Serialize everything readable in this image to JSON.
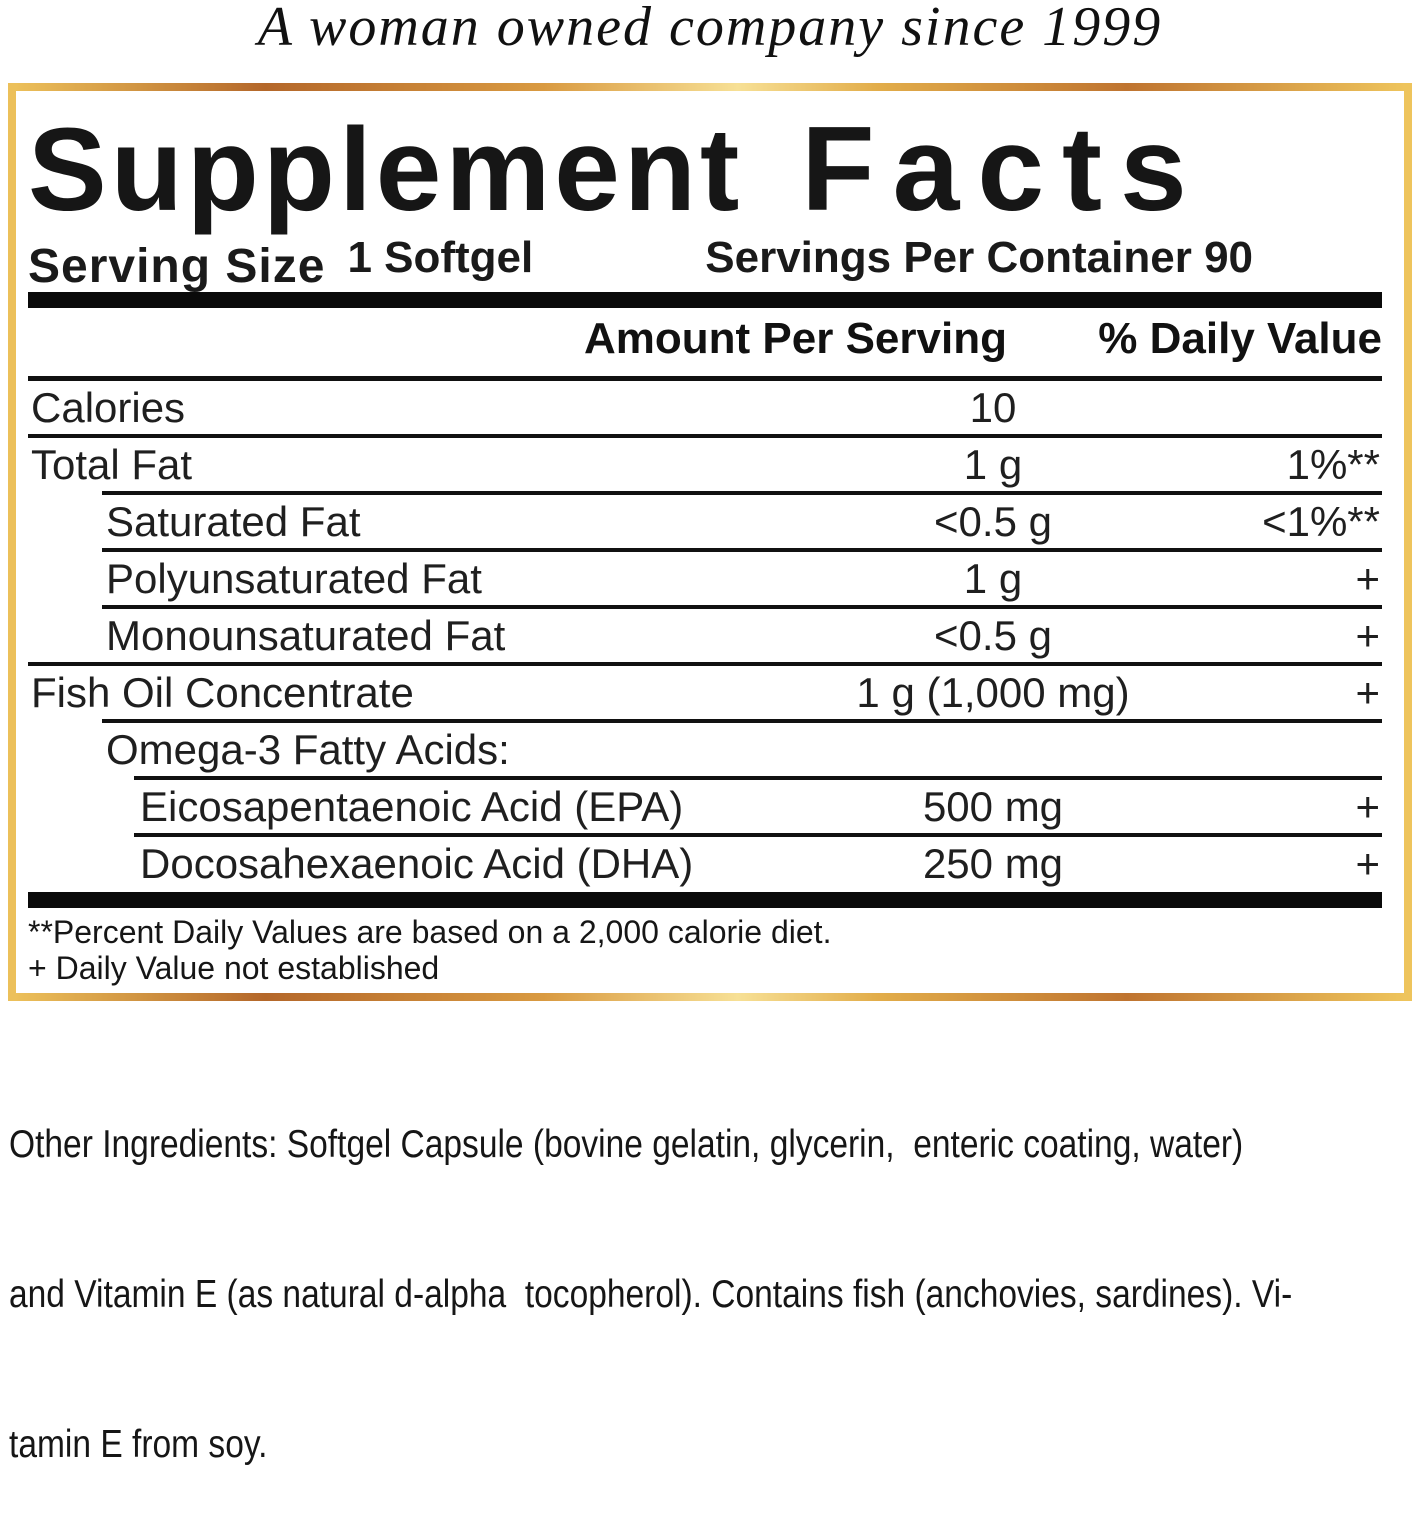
{
  "tagline": "A woman owned company since 1999",
  "panel": {
    "title": {
      "word1": "Supplement",
      "word2": "Facts"
    },
    "serving": {
      "label": "Serving Size",
      "value": "1 Softgel",
      "per_container": "Servings Per Container 90"
    },
    "columns": {
      "amount": "Amount Per Serving",
      "daily_value": "% Daily Value"
    },
    "rows": [
      {
        "label": "Calories",
        "amount": "10",
        "dv": ""
      },
      {
        "label": "Total Fat",
        "amount": "1 g",
        "dv": "1%**"
      },
      {
        "label": "Saturated Fat",
        "amount": "<0.5 g",
        "dv": "<1%**"
      },
      {
        "label": "Polyunsaturated Fat",
        "amount": "1 g",
        "dv": "+"
      },
      {
        "label": "Monounsaturated Fat",
        "amount": "<0.5 g",
        "dv": "+"
      },
      {
        "label": "Fish Oil Concentrate",
        "amount": "1 g (1,000 mg)",
        "dv": "+"
      },
      {
        "label": "Omega-3 Fatty Acids:",
        "amount": "",
        "dv": ""
      },
      {
        "label": "Eicosapentaenoic Acid (EPA)",
        "amount": "500 mg",
        "dv": "+"
      },
      {
        "label": "Docosahexaenoic Acid (DHA)",
        "amount": "250 mg",
        "dv": "+"
      }
    ],
    "footnotes": {
      "percent": "**Percent Daily Values are based on a 2,000 calorie diet.",
      "plus": "+ Daily Value not established"
    }
  },
  "other_ingredients": {
    "line1": "Other Ingredients: Softgel Capsule (bovine gelatin, glycerin,  enteric coating, water)",
    "line2": "and Vitamin E (as natural d-alpha  tocopherol). Contains fish (anchovies, sardines). Vi-",
    "line3": "tamin E from soy."
  },
  "colors": {
    "border_gold": "#eec45c",
    "border_copper": "#b4672a",
    "border_pale_gold": "#f7e095",
    "text_black": "#111111"
  }
}
